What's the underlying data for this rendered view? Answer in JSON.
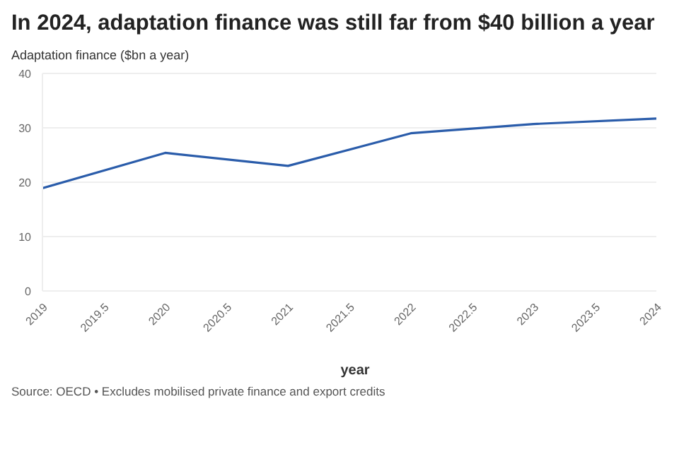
{
  "chart_data": {
    "type": "line",
    "title": "In 2024, adaptation finance was still far from $40 billion a year",
    "ylabel": "Adaptation finance ($bn a year)",
    "xlabel": "year",
    "annotations": [
      "Source: OECD • Excludes mobilised private finance and export credits"
    ],
    "x": [
      2019,
      2020,
      2021,
      2022,
      2023,
      2024
    ],
    "series": [
      {
        "color": "#2a5caa",
        "values": [
          18.9,
          25.4,
          23.0,
          29.0,
          30.7,
          31.7
        ]
      }
    ],
    "xlim": [
      2019,
      2024
    ],
    "xticks": [
      2019,
      2019.5,
      2020,
      2020.5,
      2021,
      2021.5,
      2022,
      2022.5,
      2023,
      2023.5,
      2024
    ],
    "ylim": [
      0,
      40
    ],
    "yticks": [
      0,
      10,
      20,
      30,
      40
    ],
    "grid": "y",
    "legend": false,
    "marker": "none",
    "line_style": "solid"
  }
}
